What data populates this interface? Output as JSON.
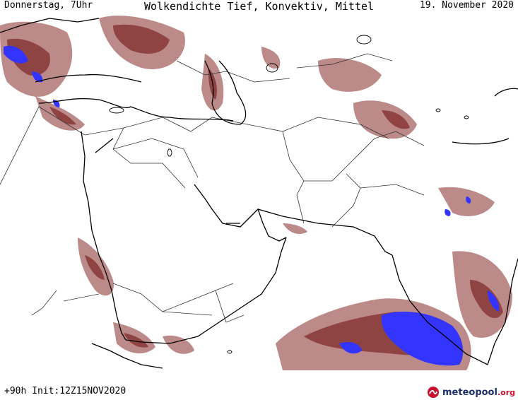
{
  "header": {
    "left": "Donnerstag, 7Uhr",
    "center": "Wolkendichte  Tief, Konvektiv, Mittel",
    "right": "19. November 2020"
  },
  "footer": {
    "left": "+90h Init:12Z15NOV2020"
  },
  "brand": {
    "name": "meteopool",
    "tld": ".org",
    "logo_icon": "meteopool-logo-icon"
  },
  "colors": {
    "cloud_low": "#a56462",
    "cloud_mid": "#8a3c3c",
    "cloud_dense": "#3434ff",
    "coastline": "#000000",
    "border": "#333333"
  }
}
